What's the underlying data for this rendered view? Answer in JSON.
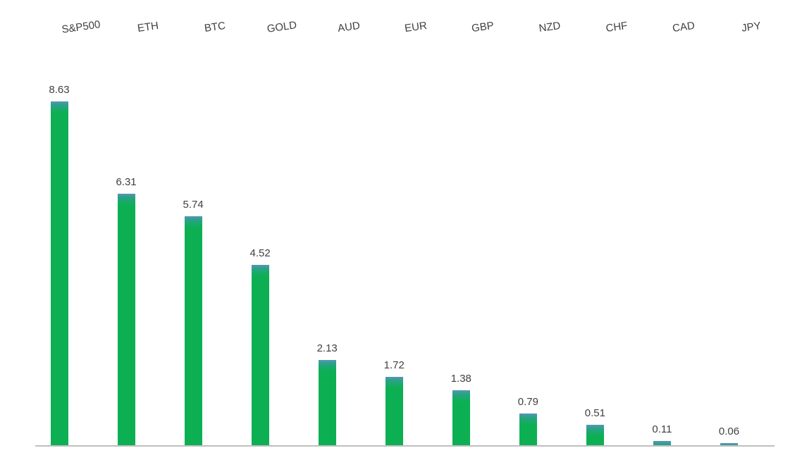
{
  "chart_data": {
    "type": "bar",
    "title": "",
    "xlabel": "",
    "ylabel": "",
    "categories": [
      "S&P500",
      "ETH",
      "BTC",
      "GOLD",
      "AUD",
      "EUR",
      "GBP",
      "NZD",
      "CHF",
      "CAD",
      "JPY"
    ],
    "values": [
      8.63,
      6.31,
      5.74,
      4.52,
      2.13,
      1.72,
      1.38,
      0.79,
      0.51,
      0.11,
      0.06
    ],
    "data_labels": [
      "8.63",
      "6.31",
      "5.74",
      "4.52",
      "2.13",
      "1.72",
      "1.38",
      "0.79",
      "0.51",
      "0.11",
      "0.06"
    ],
    "ylim": [
      0,
      9
    ],
    "grid": false,
    "legend": false,
    "y_axis_visible": false,
    "category_axis_position": "top",
    "category_label_rotation_deg": -8,
    "colors": {
      "bar_gradient_top": "#5b94b8",
      "bar_gradient_mid": "#2aa287",
      "bar_main": "#0cb053",
      "label_text": "#404040",
      "axis_line": "#bfbfbf",
      "background": "#ffffff"
    }
  }
}
